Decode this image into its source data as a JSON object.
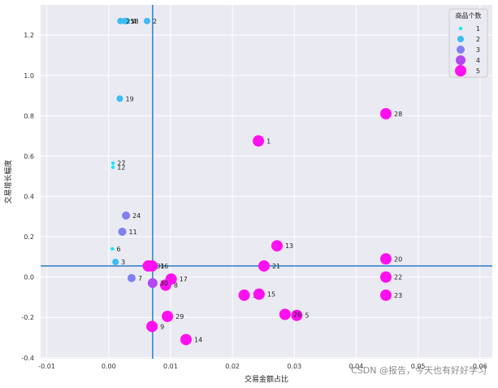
{
  "chart_data": {
    "type": "scatter",
    "xlabel": "交易金额占比",
    "ylabel": "交易增长幅度",
    "xlim": [
      -0.011,
      0.062
    ],
    "ylim": [
      -0.405,
      1.35
    ],
    "xticks": [
      -0.01,
      0.0,
      0.01,
      0.02,
      0.03,
      0.04,
      0.05,
      0.06
    ],
    "xtick_labels": [
      "-0.01",
      "0.00",
      "0.01",
      "0.02",
      "0.03",
      "0.04",
      "0.05",
      "0.06"
    ],
    "yticks": [
      -0.4,
      -0.2,
      0.0,
      0.2,
      0.4,
      0.6,
      0.8,
      1.0,
      1.2
    ],
    "ytick_labels": [
      "-0.4",
      "-0.2",
      "0.0",
      "0.2",
      "0.4",
      "0.6",
      "0.8",
      "1.0",
      "1.2"
    ],
    "grid": true,
    "reference_lines": {
      "x": 0.0071,
      "y": 0.055
    },
    "legend": {
      "title": "商品个数",
      "placement": "top-right",
      "entries": [
        {
          "label": "1",
          "size": 1
        },
        {
          "label": "2",
          "size": 2
        },
        {
          "label": "3",
          "size": 3
        },
        {
          "label": "4",
          "size": 4
        },
        {
          "label": "5",
          "size": 5
        }
      ]
    },
    "points": [
      {
        "label": "1",
        "x": 0.0242,
        "y": 0.675,
        "size": 5
      },
      {
        "label": "2",
        "x": 0.0062,
        "y": 1.27,
        "size": 2
      },
      {
        "label": "3",
        "x": 0.0011,
        "y": 0.075,
        "size": 2
      },
      {
        "label": "4",
        "x": 0.0029,
        "y": 1.27,
        "size": 2
      },
      {
        "label": "5",
        "x": 0.0304,
        "y": -0.19,
        "size": 5
      },
      {
        "label": "6",
        "x": 0.0006,
        "y": 0.14,
        "size": 1
      },
      {
        "label": "7",
        "x": 0.0037,
        "y": -0.005,
        "size": 3
      },
      {
        "label": "8",
        "x": 0.0092,
        "y": -0.04,
        "size": 5
      },
      {
        "label": "9",
        "x": 0.007,
        "y": -0.245,
        "size": 5
      },
      {
        "label": "10",
        "x": 0.0219,
        "y": -0.09,
        "size": 5
      },
      {
        "label": "11",
        "x": 0.0022,
        "y": 0.225,
        "size": 3
      },
      {
        "label": "12",
        "x": 0.0007,
        "y": 0.545,
        "size": 1
      },
      {
        "label": "13",
        "x": 0.0272,
        "y": 0.155,
        "size": 5
      },
      {
        "label": "14",
        "x": 0.0125,
        "y": -0.31,
        "size": 5
      },
      {
        "label": "15",
        "x": 0.0243,
        "y": -0.085,
        "size": 5
      },
      {
        "label": "16",
        "x": 0.007,
        "y": 0.055,
        "size": 5
      },
      {
        "label": "17",
        "x": 0.0101,
        "y": -0.01,
        "size": 5
      },
      {
        "label": "18",
        "x": 0.0026,
        "y": 1.27,
        "size": 2
      },
      {
        "label": "19",
        "x": 0.0018,
        "y": 0.885,
        "size": 2
      },
      {
        "label": "20",
        "x": 0.0448,
        "y": 0.09,
        "size": 5
      },
      {
        "label": "21",
        "x": 0.0251,
        "y": 0.055,
        "size": 5
      },
      {
        "label": "22",
        "x": 0.0448,
        "y": 0.0,
        "size": 5
      },
      {
        "label": "23",
        "x": 0.0448,
        "y": -0.09,
        "size": 5
      },
      {
        "label": "24",
        "x": 0.0028,
        "y": 0.305,
        "size": 3
      },
      {
        "label": "25",
        "x": 0.0019,
        "y": 1.27,
        "size": 2
      },
      {
        "label": "26",
        "x": 0.0285,
        "y": -0.185,
        "size": 5
      },
      {
        "label": "27",
        "x": 0.0007,
        "y": 0.565,
        "size": 1
      },
      {
        "label": "28",
        "x": 0.0448,
        "y": 0.81,
        "size": 5
      },
      {
        "label": "29",
        "x": 0.0095,
        "y": -0.195,
        "size": 5
      },
      {
        "label": "30",
        "x": 0.0071,
        "y": -0.03,
        "size": 4
      },
      {
        "label": "31",
        "x": 0.0064,
        "y": 0.055,
        "size": 5
      }
    ],
    "size_colors": {
      "1": "#14e6ff",
      "2": "#3bbcf5",
      "3": "#8080f2",
      "4": "#b348f0",
      "5": "#ff10f0"
    },
    "size_radii_rank": {
      "1": 1,
      "2": 2,
      "3": 3,
      "4": 4,
      "5": 5
    },
    "reference_line_color": "#3a86c8",
    "background": "#eaeaf2",
    "gridline_color": "#ffffff"
  },
  "watermark": "CSDN @报告，今天也有好好学习"
}
